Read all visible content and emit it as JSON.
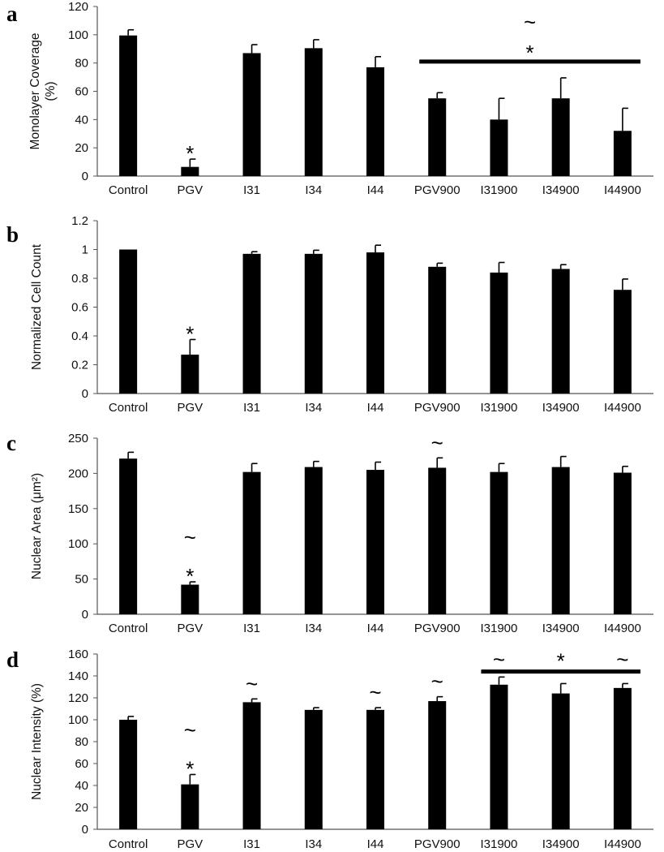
{
  "chart_data": [
    {
      "type": "bar",
      "panel": "a",
      "ylabel": [
        "Monolayer Coverage",
        "(%)"
      ],
      "ylim": [
        0,
        120
      ],
      "ticks": [
        0,
        20,
        40,
        60,
        80,
        100,
        120
      ],
      "categories": [
        "Control",
        "PGV",
        "I31",
        "I34",
        "I44",
        "PGV900",
        "I31900",
        "I34900",
        "I44900"
      ],
      "values": [
        99.5,
        6.5,
        87,
        90.5,
        77,
        55,
        40,
        55,
        32
      ],
      "errors": [
        4,
        5.5,
        6,
        6,
        7.5,
        4,
        15,
        14.5,
        16
      ],
      "annotations": [
        {
          "category": "PGV",
          "symbols": [
            "*"
          ]
        }
      ],
      "group_annotation": {
        "from": "PGV900",
        "to": "I44900",
        "value": 81,
        "symbols": [
          "~",
          "*"
        ]
      }
    },
    {
      "type": "bar",
      "panel": "b",
      "ylabel": [
        "Normalized Cell Count"
      ],
      "ylim": [
        0,
        1.2
      ],
      "ticks": [
        0,
        0.2,
        0.4,
        0.6,
        0.8,
        1,
        1.2
      ],
      "tick_labels": [
        "0",
        "0.2",
        "0.4",
        "0.6",
        "0.8",
        "1",
        "1.2"
      ],
      "categories": [
        "Control",
        "PGV",
        "I31",
        "I34",
        "I44",
        "PGV900",
        "I31900",
        "I34900",
        "I44900"
      ],
      "values": [
        1.0,
        0.27,
        0.97,
        0.97,
        0.98,
        0.88,
        0.84,
        0.865,
        0.72
      ],
      "errors": [
        0,
        0.105,
        0.015,
        0.025,
        0.05,
        0.025,
        0.07,
        0.03,
        0.075
      ],
      "annotations": [
        {
          "category": "PGV",
          "symbols": [
            "*"
          ]
        }
      ]
    },
    {
      "type": "bar",
      "panel": "c",
      "ylabel": [
        "Nuclear Area (μm²)"
      ],
      "ylim": [
        0,
        250
      ],
      "ticks": [
        0,
        50,
        100,
        150,
        200,
        250
      ],
      "categories": [
        "Control",
        "PGV",
        "I31",
        "I34",
        "I44",
        "PGV900",
        "I31900",
        "I34900",
        "I44900"
      ],
      "values": [
        221,
        42,
        202,
        209,
        205,
        208,
        202,
        209,
        201
      ],
      "errors": [
        9,
        4,
        12,
        8,
        11,
        14,
        12,
        15,
        9
      ],
      "annotations": [
        {
          "category": "PGV",
          "symbols": [
            "~",
            "*"
          ]
        },
        {
          "category": "PGV900",
          "symbols": [
            "~"
          ]
        }
      ]
    },
    {
      "type": "bar",
      "panel": "d",
      "ylabel": [
        "Nuclear Intensity (%)"
      ],
      "ylim": [
        0,
        160
      ],
      "ticks": [
        0,
        20,
        40,
        60,
        80,
        100,
        120,
        140,
        160
      ],
      "categories": [
        "Control",
        "PGV",
        "I31",
        "I34",
        "I44",
        "PGV900",
        "I31900",
        "I34900",
        "I44900"
      ],
      "values": [
        100,
        41,
        116,
        109,
        109,
        117,
        132,
        124,
        129
      ],
      "errors": [
        3,
        9,
        3,
        2,
        2,
        4,
        7,
        9,
        4
      ],
      "annotations": [
        {
          "category": "PGV",
          "symbols": [
            "~",
            "*"
          ]
        },
        {
          "category": "I31",
          "symbols": [
            "~"
          ]
        },
        {
          "category": "I44",
          "symbols": [
            "~"
          ]
        },
        {
          "category": "PGV900",
          "symbols": [
            "~"
          ]
        }
      ],
      "group_annotation": {
        "from": "I31900",
        "to": "I44900",
        "value": 144,
        "symbols": [
          "*"
        ],
        "end_symbols": [
          "~",
          "~"
        ]
      }
    }
  ],
  "colors": {
    "bar": "#000000",
    "axis": "#555555",
    "text": "#111111"
  }
}
